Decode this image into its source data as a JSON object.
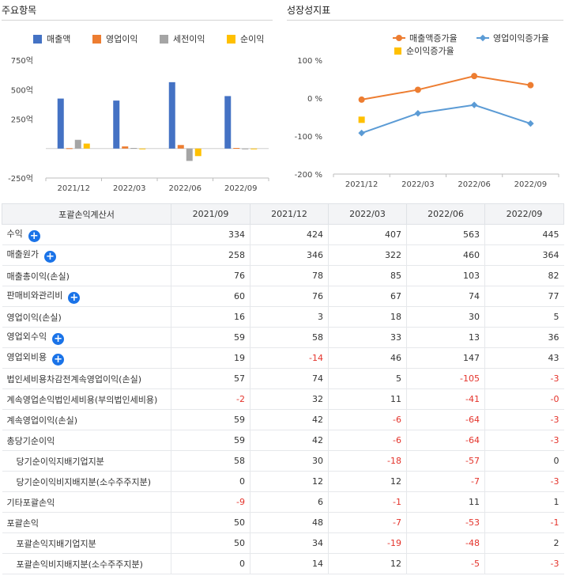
{
  "left_panel": {
    "title": "주요항목"
  },
  "right_panel": {
    "title": "성장성지표"
  },
  "colors": {
    "sales": "#4472c4",
    "op_income": "#ed7d31",
    "pretax": "#a5a5a5",
    "net": "#ffc000",
    "sales_growth": "#ed7d31",
    "op_growth": "#5b9bd5",
    "net_growth": "#ffc000",
    "negative_text": "#e4332b",
    "plus_button": "#1a73e8"
  },
  "chart_data": [
    {
      "type": "bar",
      "categories": [
        "2021/12",
        "2022/03",
        "2022/06",
        "2022/09"
      ],
      "series": [
        {
          "name": "매출액",
          "values": [
            424,
            407,
            563,
            445
          ]
        },
        {
          "name": "영업이익",
          "values": [
            3,
            18,
            30,
            5
          ]
        },
        {
          "name": "세전이익",
          "values": [
            74,
            5,
            -105,
            -3
          ]
        },
        {
          "name": "순이익",
          "values": [
            42,
            -6,
            -64,
            -3
          ]
        }
      ],
      "ylim": [
        -250,
        750
      ],
      "yticks": [
        "-250억",
        "250억",
        "500억",
        "750억"
      ],
      "legend": "top",
      "grid": false
    },
    {
      "type": "line",
      "categories": [
        "2021/12",
        "2022/03",
        "2022/06",
        "2022/09"
      ],
      "series": [
        {
          "name": "매출액증가율",
          "values": [
            -4,
            22,
            58,
            34
          ]
        },
        {
          "name": "영업이익증가율",
          "values": [
            -92,
            -40,
            -18,
            -67
          ]
        },
        {
          "name": "순이익증가율",
          "values": [
            -57,
            null,
            null,
            null
          ]
        }
      ],
      "ylim": [
        -200,
        100
      ],
      "yticks": [
        "-200 %",
        "-100 %",
        "0 %",
        "100 %"
      ],
      "legend": "top",
      "grid": false
    }
  ],
  "table": {
    "headers": [
      "포괄손익계산서",
      "2021/09",
      "2021/12",
      "2022/03",
      "2022/06",
      "2022/09"
    ],
    "rows": [
      {
        "label": "수익",
        "expand": "+",
        "indent": false,
        "values": [
          "334",
          "424",
          "407",
          "563",
          "445"
        ]
      },
      {
        "label": "매출원가",
        "expand": "+",
        "indent": false,
        "values": [
          "258",
          "346",
          "322",
          "460",
          "364"
        ]
      },
      {
        "label": "매출총이익(손실)",
        "expand": "",
        "indent": false,
        "values": [
          "76",
          "78",
          "85",
          "103",
          "82"
        ]
      },
      {
        "label": "판매비와관리비",
        "expand": "+",
        "indent": false,
        "values": [
          "60",
          "76",
          "67",
          "74",
          "77"
        ]
      },
      {
        "label": "영업이익(손실)",
        "expand": "",
        "indent": false,
        "values": [
          "16",
          "3",
          "18",
          "30",
          "5"
        ]
      },
      {
        "label": "영업외수익",
        "expand": "+",
        "indent": false,
        "values": [
          "59",
          "58",
          "33",
          "13",
          "36"
        ]
      },
      {
        "label": "영업외비용",
        "expand": "+",
        "indent": false,
        "values": [
          "19",
          "-14",
          "46",
          "147",
          "43"
        ]
      },
      {
        "label": "법인세비용차감전계속영업이익(손실)",
        "expand": "",
        "indent": false,
        "values": [
          "57",
          "74",
          "5",
          "-105",
          "-3"
        ]
      },
      {
        "label": "계속영업손익법인세비용(부의법인세비용)",
        "expand": "",
        "indent": false,
        "values": [
          "-2",
          "32",
          "11",
          "-41",
          "-0"
        ]
      },
      {
        "label": "계속영업이익(손실)",
        "expand": "",
        "indent": false,
        "values": [
          "59",
          "42",
          "-6",
          "-64",
          "-3"
        ]
      },
      {
        "label": "총당기순이익",
        "expand": "",
        "indent": false,
        "values": [
          "59",
          "42",
          "-6",
          "-64",
          "-3"
        ]
      },
      {
        "label": "당기순이익지배기업지분",
        "expand": "",
        "indent": true,
        "values": [
          "58",
          "30",
          "-18",
          "-57",
          "0"
        ]
      },
      {
        "label": "당기순이익비지배지분(소수주주지분)",
        "expand": "",
        "indent": true,
        "values": [
          "0",
          "12",
          "12",
          "-7",
          "-3"
        ]
      },
      {
        "label": "기타포괄손익",
        "expand": "",
        "indent": false,
        "values": [
          "-9",
          "6",
          "-1",
          "11",
          "1"
        ]
      },
      {
        "label": "포괄손익",
        "expand": "",
        "indent": false,
        "values": [
          "50",
          "48",
          "-7",
          "-53",
          "-1"
        ]
      },
      {
        "label": "포괄손익지배기업지분",
        "expand": "",
        "indent": true,
        "values": [
          "50",
          "34",
          "-19",
          "-48",
          "2"
        ]
      },
      {
        "label": "포괄손익비지배지분(소수주주지분)",
        "expand": "",
        "indent": true,
        "values": [
          "0",
          "14",
          "12",
          "-5",
          "-3"
        ]
      }
    ]
  }
}
